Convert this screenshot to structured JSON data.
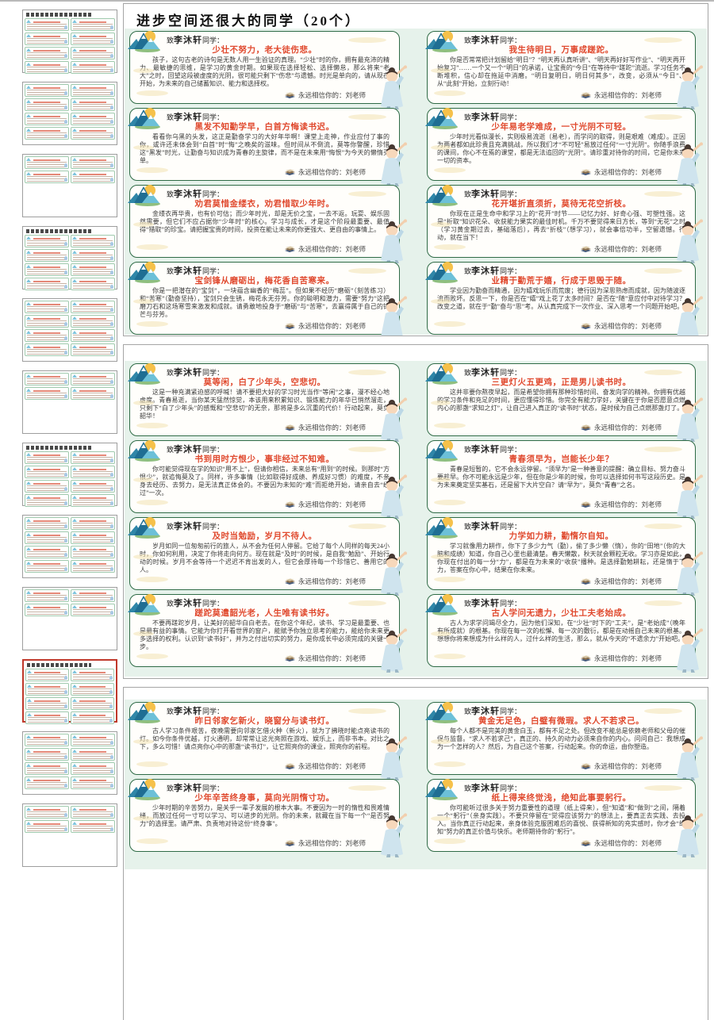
{
  "window": {
    "doc_title": "进步空间还很大的同学（20个）"
  },
  "colors": {
    "accent_red": "#e0492e",
    "card_border_green": "#2f6b46",
    "band_green": "#e6f2eb",
    "selected_thumb_red": "#c0392b"
  },
  "card_template": {
    "salutation_prefix": "致",
    "student_name": "李沐轩",
    "salutation_suffix": "同学：",
    "signature": "永远相信你的：刘老师"
  },
  "pages": [
    {
      "cards": [
        {
          "title": "少壮不努力，老大徒伤悲。",
          "body": "孩子，这句古老的诗句是无数人用一生验证的真理。“少壮”时的你，拥有最充沛的精力、最敏捷的思维，是学习的黄金时期。如果现在选择轻松、选择懒怠，那么将来“老大”之时，回望这段被虚度的光阴，很可能只剩下“伤悲”与遗憾。时光是单向的，请从现在开始，为未来的自己储蓄知识、能力和选择权。"
        },
        {
          "title": "我生待明日，万事成蹉跎。",
          "body": "你是否常常把计划留给“明日”？“明天再认真听讲”、“明天再好好写作业”、“明天再开始复习”……一个又一个“明日”的承诺，让宝贵的“今日”在等待中“蹉跎”流逝。学习任务不断堆积，信心却在拖延中消磨。“明日复明日，明日何其多”，改变，必须从“今日”、从“此刻”开始，立刻行动！"
        },
        {
          "title": "黑发不知勤学早，白首方悔读书迟。",
          "body": "看看你乌黑的头发，这正是勤奋学习的大好年华啊！课堂上走神，作业应付了事的你，或许还未体会到“白首”时“悔”之晚矣的滋味。但时间从不倒流，莫等你警醒，珍惜这“黑发”时光，让勤奋与知识成为青春的主旋律，而不是在未来用“悔恨”为今天的懒惰买单。"
        },
        {
          "title": "少年易老学难成，一寸光阴不可轻。",
          "body": "少年时光看似漫长，实则极易流逝（易老），而学问的取得，则是艰难（难成）。正因为两者都如此珍贵且充满挑战，所以我们才“不可轻”易放过任何“一寸光阴”。你随手浪费的课间，你心不在焉的课堂，都是无法追回的“光阴”。请珍重对待你的时间，它是你未来一切的资本。"
        },
        {
          "title": "劝君莫惜金缕衣，劝君惜取少年时。",
          "body": "金缕衣再华贵，也有价可估；而少年时光，却是无价之宝，一去不返。玩耍、娱乐固然需要，但它们不应占据你“少年时”的核心。学习与成长，才是这个阶段最重要、最值得“猎取”的珍宝。请把握宝贵的时间，投资在能让未来的你更强大、更自由的事情上。"
        },
        {
          "title": "花开堪折直须折，莫待无花空折枝。",
          "body": "你现在正是生命中和学习上的“花开”时节——记忆力好、好奇心强、可塑性强。这是“折取”知识花朵、收获能力果实的最佳时机。千万不要觉得来日方长，等到“无花”之时（学习黄金期过去，基础落后），再去“折枝”（想学习），就会事倍功半，空留遗憾。行动，就在当下！"
        },
        {
          "title": "宝剑锋从磨砺出，梅花香自苦寒来。",
          "body": "你是一把潜在的“宝剑”，一块蕴含幽香的“梅蕊”。但如果不经历“磨砺”（刻苦练习）和“苦寒”（勤奋坚持），宝剑只会生锈，梅花永无芬芳。你的聪明和潜力，需要“努力”这把磨刀石和这场寒雪来激发和成就。请勇敢地投身于“磨砺”与“苦寒”，去赢得属于自己的锋芒与芬芳。"
        },
        {
          "title": "业精于勤荒于嬉，行成于思毁于随。",
          "body": "学业因为勤奋而精通，因为嬉戏玩乐而荒废；德行因为深思熟虑而成就，因为随波逐流而败坏。反思一下，你是否在“嬉”戏上花了太多时间？是否在“随”意应付中对待学习？改变之道，就在于“勤”奋与“思”考。从认真完成下一次作业、深入思考一个问题开始吧。"
        }
      ]
    },
    {
      "cards": [
        {
          "title": "莫等闲，白了少年头，空悲切。",
          "body": "这是一种充满紧迫感的呼喊！请不要把大好的学习时光当作“等闲”之事，漫不经心地虚度。青春易逝，当你某天猛然惊觉，本该用来积累知识、锻炼能力的年华已悄然溜走，只剩下“白了少年头”的感慨和“空悲切”的无奈，那将是多么沉重的代价！行动起来，莫负韶华！"
        },
        {
          "title": "三更灯火五更鸡，正是男儿读书时。",
          "body": "这并非要你熬夜早起，而是希望你拥有那种珍惜时间、奋发向学的精神。你拥有优越的学习条件和充足的时间，更应懂得珍惜。你完全有能力学好，关键在于你是否愿意点燃内心的那盏“求知之灯”，让自己进入真正的“读书时”状态，是时候为自己点燃那盏灯了。"
        },
        {
          "title": "书到用时方恨少，事非经过不知难。",
          "body": "你可能觉得现在学的知识“用不上”，但请你相信，未来总有“用到”的时候。到那时“方恨少”，就追悔莫及了。同样，许多事情（比如取得好成绩、养成好习惯）的难度，不亲身去经历、去努力，是无法真正体会的。不要因为未知的“难”而拒绝开始，请亲自去“经过”一次。"
        },
        {
          "title": "青春须早为，岂能长少年？",
          "body": "青春是短暂的，它不会永远停留。“须早为”是一种善意的提醒：确立目标、努力奋斗要趁早。你不可能永远是少年，但在你是少年的时候，你可以选择如何书写这段历史。是为未来奠定坚实基石，还是留下大片空白？请“早为”，莫负“青春”之名。"
        },
        {
          "title": "及时当勉励，岁月不待人。",
          "body": "岁月如同一位匆匆前行的旅人，从不会为任何人停留。它给了每个人同样的每天24小时，你如何利用，决定了你将走向何方。现在就是“及时”的时候，是自我“勉励”、开始行动的时候。岁月不会等待一个迟迟不肯出发的人，但它会厚待每一个珍惜它、善用它的人。"
        },
        {
          "title": "力学如力耕，勤惰尔自知。",
          "body": "学习就像用力耕作，你下了多少力气（勤），偷了多少懒（惰），你的“田地”（你的大脑和成绩）知道，你自己心里也最清楚。春天懒散，秋天就会颗粒无收。学习亦是如此，你现在付出的每一分“力”，都是在为未来的“收获”播种。是选择勤勉耕耘，还是惰于下力，答案在你心中，结果在你未来。"
        },
        {
          "title": "蹉跎莫遣韶光老，人生唯有读书好。",
          "body": "不要再蹉跎岁月，让美好的韶华白白老去。在你这个年纪，读书、学习是最重要、也是最有益的事情。它能为你打开看世界的窗户，能赋予你独立思考的能力，能给你未来更多选择的权利。认识到“读书好”，并为之付出切实的努力，是你成长中必须完成的关键一步。"
        },
        {
          "title": "古人学问无遗力，少壮工夫老始成。",
          "body": "古人为求学问竭尽全力，因为他们深知，在“少壮”时下的“工夫”，是“老始成”（晚年有所成就）的根基。你现在每一次的松懈、每一次的敷衍，都是在动摇自己未来的根基。想想你将来想成为什么样的人，过什么样的生活，那么，就从今天的“不遗余力”开始吧。"
        }
      ]
    },
    {
      "cards": [
        {
          "title": "昨日邻家乞新火，晓窗分与读书灯。",
          "body": "古人学习条件艰苦，夜晚需要向邻家乞借火种（新火），就为了拂晓时能点亮读书的灯。如今你条件优越，灯火通明，却常常让这光亮照在游戏、娱乐上，而非书本。对比之下，多么可惜！请点亮你心中的那盏“读书灯”，让它照亮你的课业，照亮你的前程。"
        },
        {
          "title": "黄金无足色，白璧有微瑕。求人不若求己。",
          "body": "每个人都不是完美的黄金白玉，都有不足之处。但改变不能总是依赖老师和父母的催促与监督。“求人不若求己”，真正的、持久的动力必须来自你的内心。问问自己：我想成为一个怎样的人？然后，为自己这个答案，行动起来。你的命运，由你塑造。"
        },
        {
          "title": "少年辛苦终身事，莫向光阴惰寸功。",
          "body": "少年时期的辛苦努力，是关乎一辈子发展的根本大事。不要因为一时的惰性和畏难情绪，而放过任何一寸可以学习、可以进步的光阴。你的未来，就藏在当下每一个“是否努力”的选择里。请严肃、负责地对待这份“终身事”。"
        },
        {
          "title": "纸上得来终觉浅，绝知此事要躬行。",
          "body": "你可能听过很多关于努力重要性的道理（纸上得来），但“知道”和“做到”之间，隔着一个“躬行”（亲身实践）。不要只停留在“觉得应该努力”的想法上，要真正去实践、去投入。当你真正行动起来，亲身体验克服困难后的喜悦、获得新知的充实感时，你才会“绝知”努力的真正价值与快乐。老师期待你的“躬行”。"
        }
      ]
    }
  ],
  "sidebar": {
    "thumbnails": [
      {
        "has_title": true,
        "rows": 4,
        "selected": false
      },
      {
        "has_title": false,
        "rows": 4,
        "selected": false
      },
      {
        "has_title": false,
        "rows": 2,
        "selected": false
      },
      {
        "has_title": true,
        "rows": 4,
        "selected": false
      },
      {
        "has_title": false,
        "rows": 4,
        "selected": false
      },
      {
        "has_title": false,
        "rows": 2,
        "selected": false
      },
      {
        "has_title": true,
        "rows": 4,
        "selected": false
      },
      {
        "has_title": false,
        "rows": 4,
        "selected": false
      },
      {
        "has_title": false,
        "rows": 2,
        "selected": false
      },
      {
        "has_title": true,
        "rows": 4,
        "selected": true
      },
      {
        "has_title": false,
        "rows": 4,
        "selected": false
      },
      {
        "has_title": false,
        "rows": 2,
        "selected": false
      }
    ]
  }
}
